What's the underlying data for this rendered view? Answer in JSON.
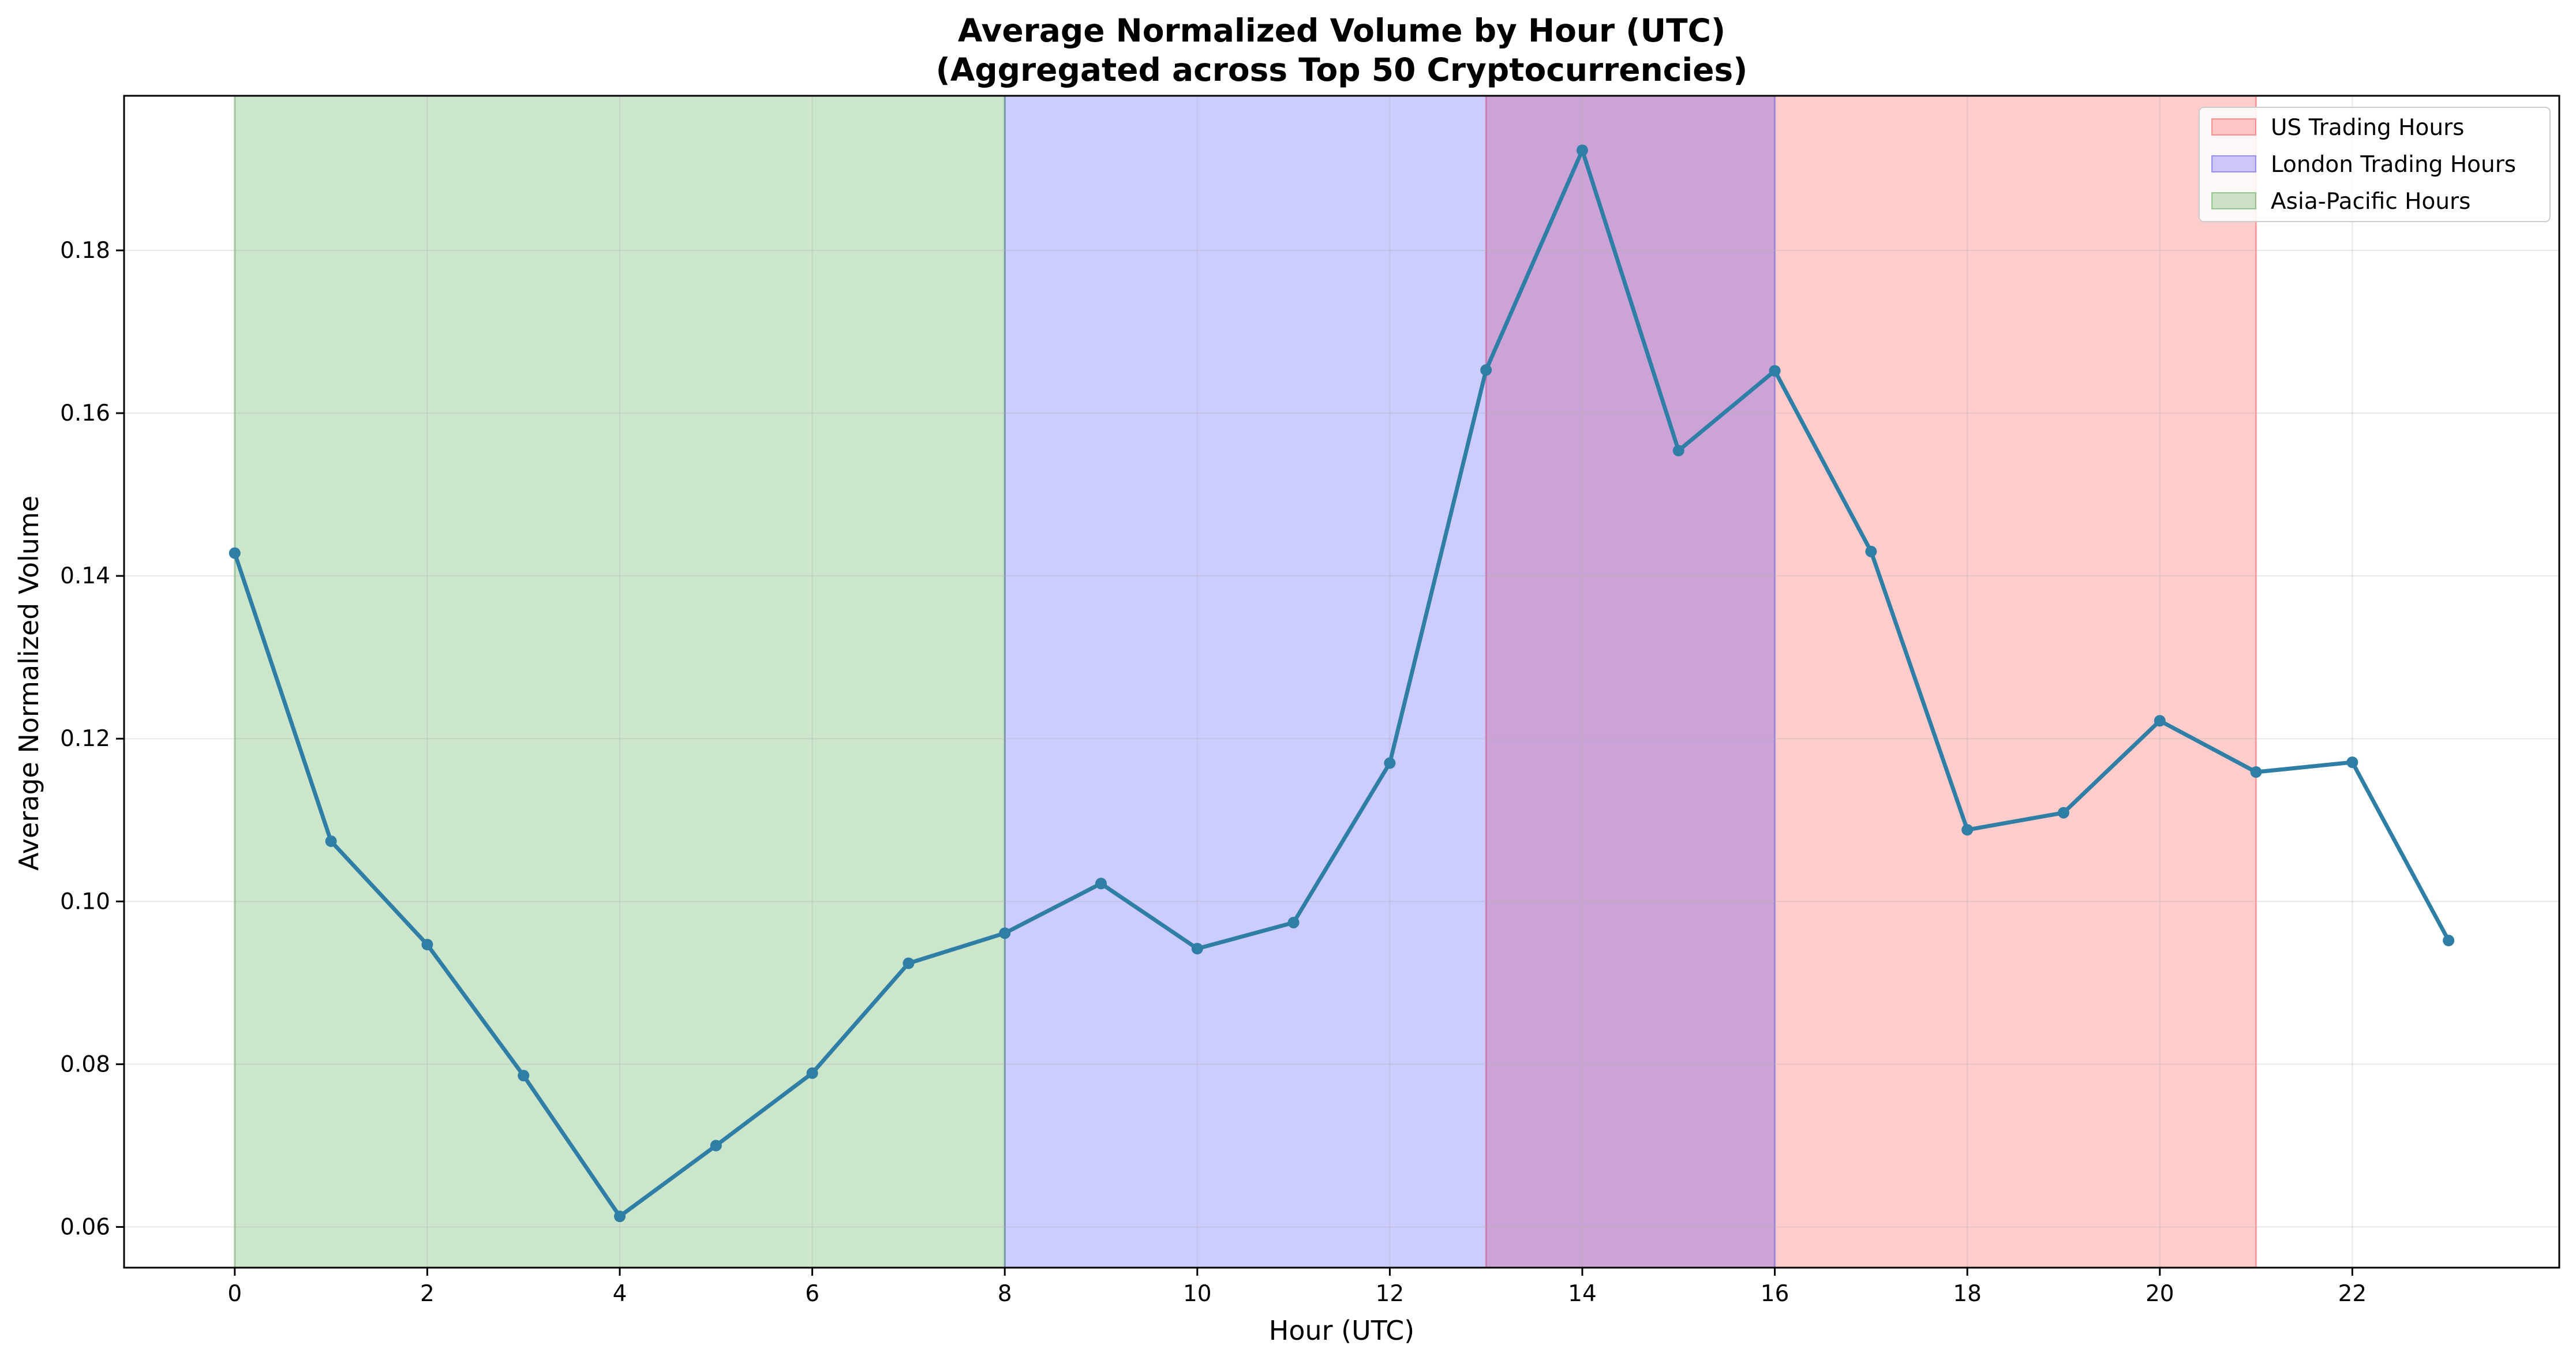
{
  "chart_data": {
    "type": "line",
    "title": "Average Normalized Volume by Hour (UTC)",
    "subtitle": "(Aggregated across Top 50 Cryptocurrencies)",
    "xlabel": "Hour (UTC)",
    "ylabel": "Average Normalized Volume",
    "xlim": [
      -1.15,
      24.15
    ],
    "ylim": [
      0.055,
      0.199
    ],
    "x_ticks": [
      0,
      2,
      4,
      6,
      8,
      10,
      12,
      14,
      16,
      18,
      20,
      22
    ],
    "x_tick_labels": [
      "0",
      "2",
      "4",
      "6",
      "8",
      "10",
      "12",
      "14",
      "16",
      "18",
      "20",
      "22"
    ],
    "y_ticks": [
      0.06,
      0.08,
      0.1,
      0.12,
      0.14,
      0.16,
      0.18
    ],
    "y_tick_labels": [
      "0.06",
      "0.08",
      "0.10",
      "0.12",
      "0.14",
      "0.16",
      "0.18"
    ],
    "grid": true,
    "legend_position": "top-right",
    "series": [
      {
        "color": "#2e7ea6",
        "x": [
          0,
          1,
          2,
          3,
          4,
          5,
          6,
          7,
          8,
          9,
          10,
          11,
          12,
          13,
          14,
          15,
          16,
          17,
          18,
          19,
          20,
          21,
          22,
          23
        ],
        "values": [
          0.1428,
          0.1074,
          0.0947,
          0.0786,
          0.0613,
          0.07,
          0.0789,
          0.0924,
          0.0961,
          0.1022,
          0.0942,
          0.0974,
          0.117,
          0.1653,
          0.1923,
          0.1554,
          0.1652,
          0.143,
          0.1088,
          0.1109,
          0.1222,
          0.1159,
          0.1171,
          0.0952
        ]
      }
    ],
    "shaded_regions": [
      {
        "label": "US Trading Hours",
        "x_start": 13,
        "x_end": 21,
        "color": "#ff0000",
        "opacity": 0.2
      },
      {
        "label": "London Trading Hours",
        "x_start": 8,
        "x_end": 16,
        "color": "#0000ff",
        "opacity": 0.2
      },
      {
        "label": "Asia-Pacific Hours",
        "x_start": 0,
        "x_end": 8,
        "color": "#008000",
        "opacity": 0.2
      }
    ]
  }
}
